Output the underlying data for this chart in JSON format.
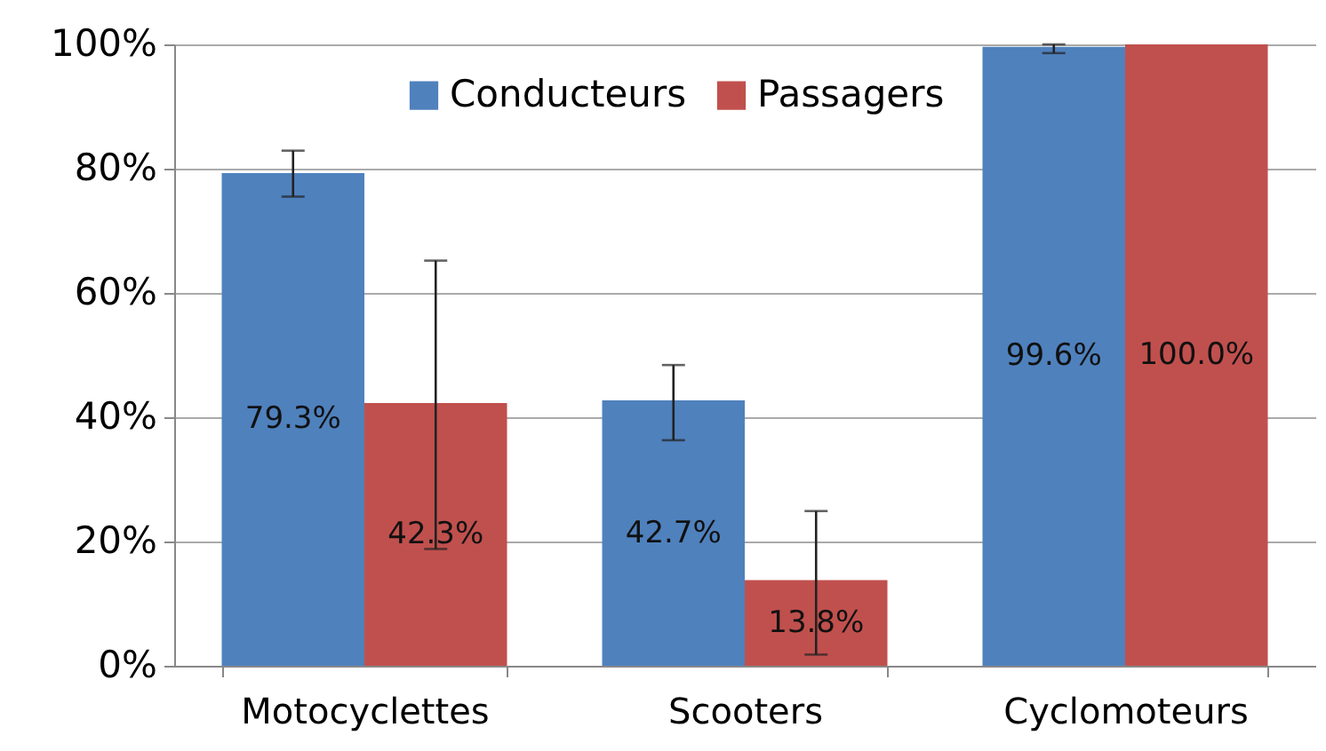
{
  "chart_data": {
    "type": "bar",
    "categories": [
      "Motocyclettes",
      "Scooters",
      "Cyclomoteurs"
    ],
    "series": [
      {
        "name": "Conducteurs",
        "color": "#4f81bd",
        "values": [
          79.3,
          42.7,
          99.6
        ],
        "value_labels": [
          "79.3%",
          "42.7%",
          "99.6%"
        ],
        "errors": [
          [
            75.5,
            82.9
          ],
          [
            36.3,
            48.4
          ],
          [
            98.6,
            100
          ]
        ]
      },
      {
        "name": "Passagers",
        "color": "#c0504d",
        "values": [
          42.3,
          13.8,
          100.0
        ],
        "value_labels": [
          "42.3%",
          "13.8%",
          "100.0%"
        ],
        "errors": [
          [
            18.8,
            65.2
          ],
          [
            1.8,
            24.9
          ],
          null
        ]
      }
    ],
    "ylim": [
      0,
      100
    ],
    "yticks": [
      {
        "value": 0,
        "label": "0%"
      },
      {
        "value": 20,
        "label": "20%"
      },
      {
        "value": 40,
        "label": "40%"
      },
      {
        "value": 60,
        "label": "60%"
      },
      {
        "value": 80,
        "label": "80%"
      },
      {
        "value": 100,
        "label": "100%"
      }
    ],
    "grid": "y",
    "legend": "top"
  }
}
